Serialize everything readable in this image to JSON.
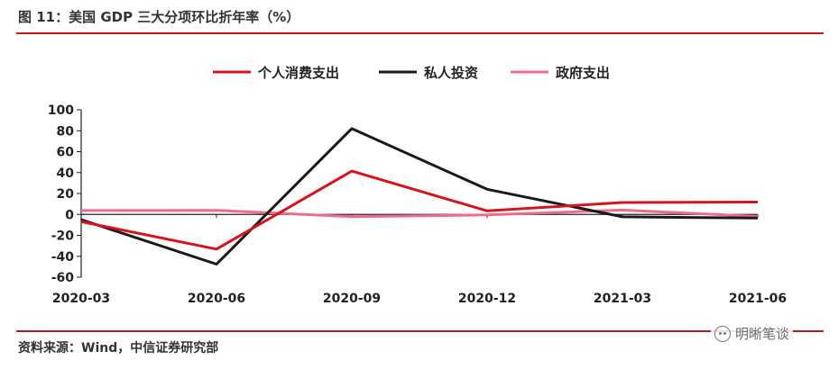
{
  "header": {
    "title": "图 11：美国 GDP 三大分项环比折年率（%）"
  },
  "footer": {
    "source": "资料来源：Wind，中信证券研究部",
    "watermark": "明晰笔谈"
  },
  "chart_data": {
    "type": "line",
    "title": "",
    "xlabel": "",
    "ylabel": "",
    "ylim": [
      -60,
      100
    ],
    "yticks": [
      100,
      80,
      60,
      40,
      20,
      0,
      -20,
      -40,
      -60
    ],
    "categories": [
      "2020-03",
      "2020-06",
      "2020-09",
      "2020-12",
      "2021-03",
      "2021-06"
    ],
    "legend_position": "top",
    "grid": false,
    "series": [
      {
        "name": "个人消费支出",
        "color": "#d7141d",
        "values": [
          -6.9,
          -33.2,
          41.4,
          3.4,
          11.4,
          11.8
        ]
      },
      {
        "name": "私人投资",
        "color": "#1a1a1a",
        "values": [
          -5.0,
          -47.5,
          82.0,
          24.0,
          -2.3,
          -3.5
        ]
      },
      {
        "name": "政府支出",
        "color": "#f06a8a",
        "values": [
          3.7,
          3.9,
          -2.1,
          -0.5,
          4.2,
          -1.9
        ]
      }
    ]
  }
}
